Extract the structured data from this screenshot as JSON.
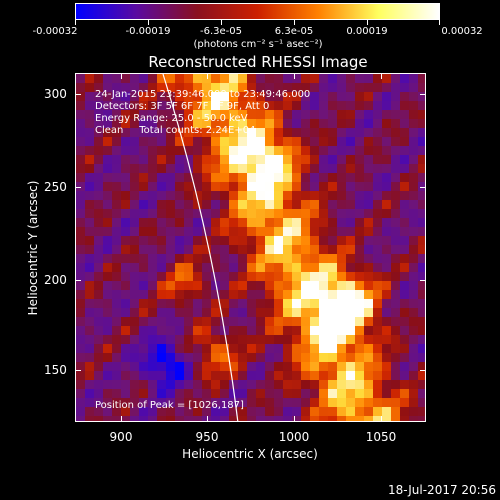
{
  "colorbar": {
    "tick_labels": [
      "-0.00032",
      "-0.00019",
      "-6.3e-05",
      "6.3e-05",
      "0.00019",
      "0.00032"
    ],
    "units": "(photons cm⁻² s⁻¹ asec⁻²)",
    "colors": [
      "#0000ff",
      "#5a0aa0",
      "#8a1020",
      "#cc2000",
      "#ff8000",
      "#ffff60",
      "#ffffff"
    ]
  },
  "title": "Reconstructed RHESSI Image",
  "info": {
    "line1": "24-Jan-2015 23:39:46.000 to 23:49:46.000",
    "line2": "Detectors: 3F 5F 6F 7F 8F 9F, Att 0",
    "line3": "Energy Range: 25.0 - 50.0 keV",
    "line4": "Clean     Total counts: 2.24E+04",
    "peak": "Position of Peak = [1026,187]"
  },
  "axes": {
    "xlabel": "Heliocentric X (arcsec)",
    "ylabel": "Heliocentric Y (arcsec)",
    "x_ticks": [
      "900",
      "950",
      "1000",
      "1050"
    ],
    "y_ticks": [
      "300",
      "250",
      "200",
      "150"
    ],
    "xlim": [
      878,
      1068
    ],
    "ylim": [
      118,
      311
    ]
  },
  "timestamp": "18-Jul-2017 20:56"
}
